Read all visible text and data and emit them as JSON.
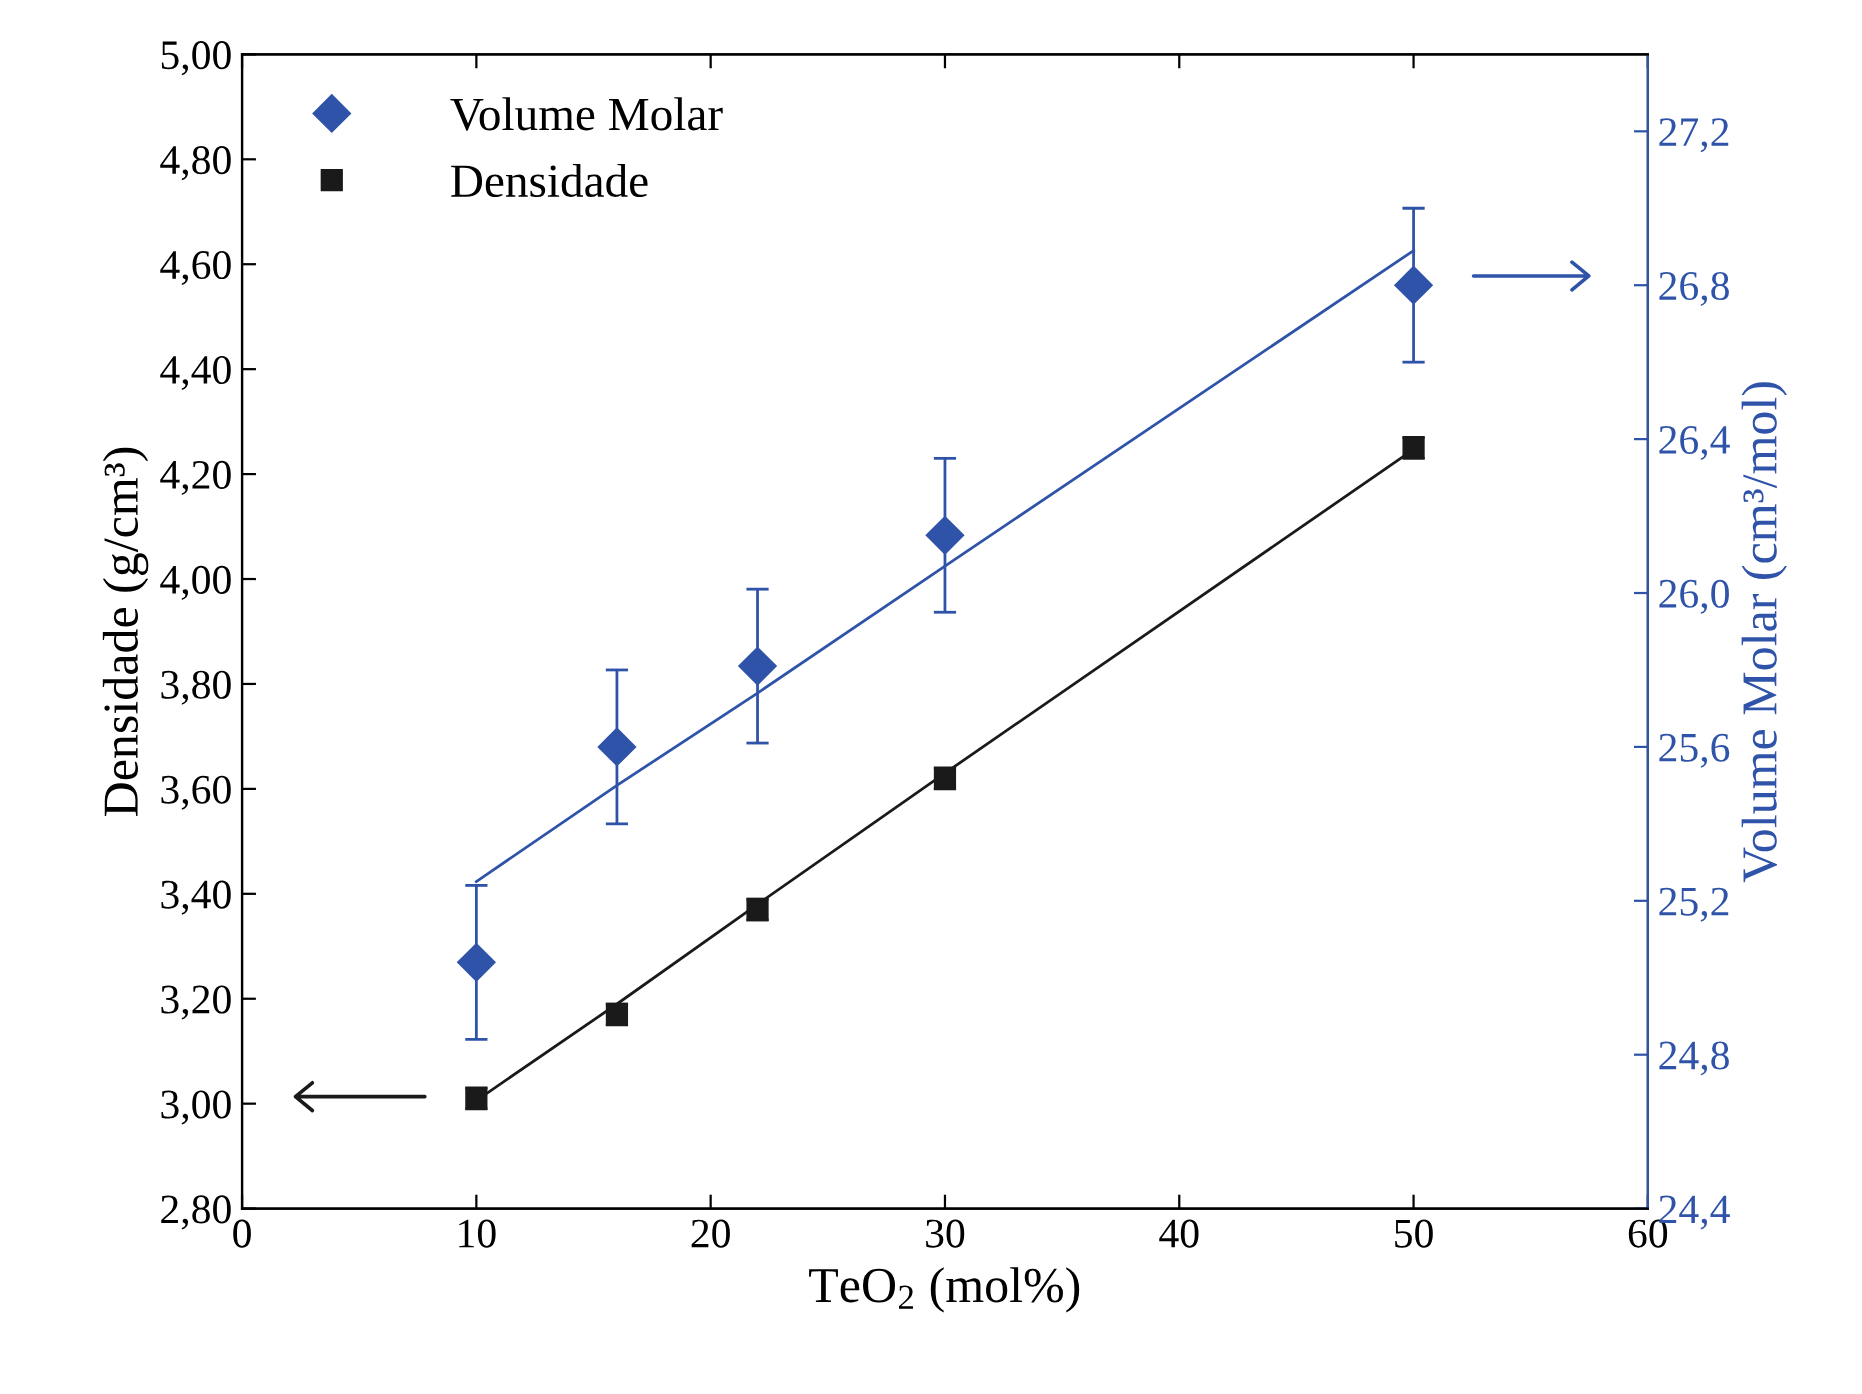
{
  "chart_data": {
    "type": "scatter",
    "xlabel": "TeO$_{2}$ (mol%)",
    "ylabel": "Densidade (g/cm³)",
    "y2label": "Volume Molar (cm³/mol)",
    "x": [
      10,
      16,
      22,
      30,
      50
    ],
    "series": [
      {
        "name": "Volume Molar",
        "axis": "y2",
        "color": "#2e53a8",
        "marker": "diamond",
        "values": [
          25.04,
          25.6,
          25.81,
          26.15,
          26.8
        ],
        "errors": [
          0.2,
          0.2,
          0.2,
          0.2,
          0.2
        ]
      },
      {
        "name": "Densidade",
        "color": "#1a1a1a",
        "marker": "square",
        "values": [
          3.01,
          3.17,
          3.37,
          3.62,
          4.25
        ],
        "errors": [
          0.02,
          0.02,
          0.02,
          0.02,
          0.02
        ]
      },
      {
        "type": "line",
        "axis": "y2",
        "color": "#2e53a8",
        "values": [
          25.25,
          25.5,
          25.74,
          26.07,
          26.89
        ]
      },
      {
        "type": "line",
        "color": "#1a1a1a",
        "values": [
          3.006,
          3.19,
          3.38,
          3.63,
          4.247
        ]
      }
    ],
    "xlim": [
      0,
      60
    ],
    "xticks": [
      0,
      10,
      20,
      30,
      40,
      50,
      60
    ],
    "ylim": [
      2.8,
      5.0
    ],
    "yticks": [
      {
        "value": 2.8,
        "label": "2,80"
      },
      {
        "value": 3.0,
        "label": "3,00"
      },
      {
        "value": 3.2,
        "label": "3,20"
      },
      {
        "value": 3.4,
        "label": "3,40"
      },
      {
        "value": 3.6,
        "label": "3,60"
      },
      {
        "value": 3.8,
        "label": "3,80"
      },
      {
        "value": 4.0,
        "label": "4,00"
      },
      {
        "value": 4.2,
        "label": "4,20"
      },
      {
        "value": 4.4,
        "label": "4,40"
      },
      {
        "value": 4.6,
        "label": "4,60"
      },
      {
        "value": 4.8,
        "label": "4,80"
      },
      {
        "value": 5.0,
        "label": "5,00"
      }
    ],
    "y2lim": [
      24.4,
      27.4
    ],
    "y2ticks": [
      {
        "value": 24.4,
        "label": "24,4"
      },
      {
        "value": 24.8,
        "label": "24,8"
      },
      {
        "value": 25.2,
        "label": "25,2"
      },
      {
        "value": 25.6,
        "label": "25,6"
      },
      {
        "value": 26.0,
        "label": "26,0"
      },
      {
        "value": 26.4,
        "label": "26,4"
      },
      {
        "value": 26.8,
        "label": "26,8"
      },
      {
        "value": 27.2,
        "label": "27,2"
      }
    ],
    "legend": "top left",
    "grid": false
  }
}
